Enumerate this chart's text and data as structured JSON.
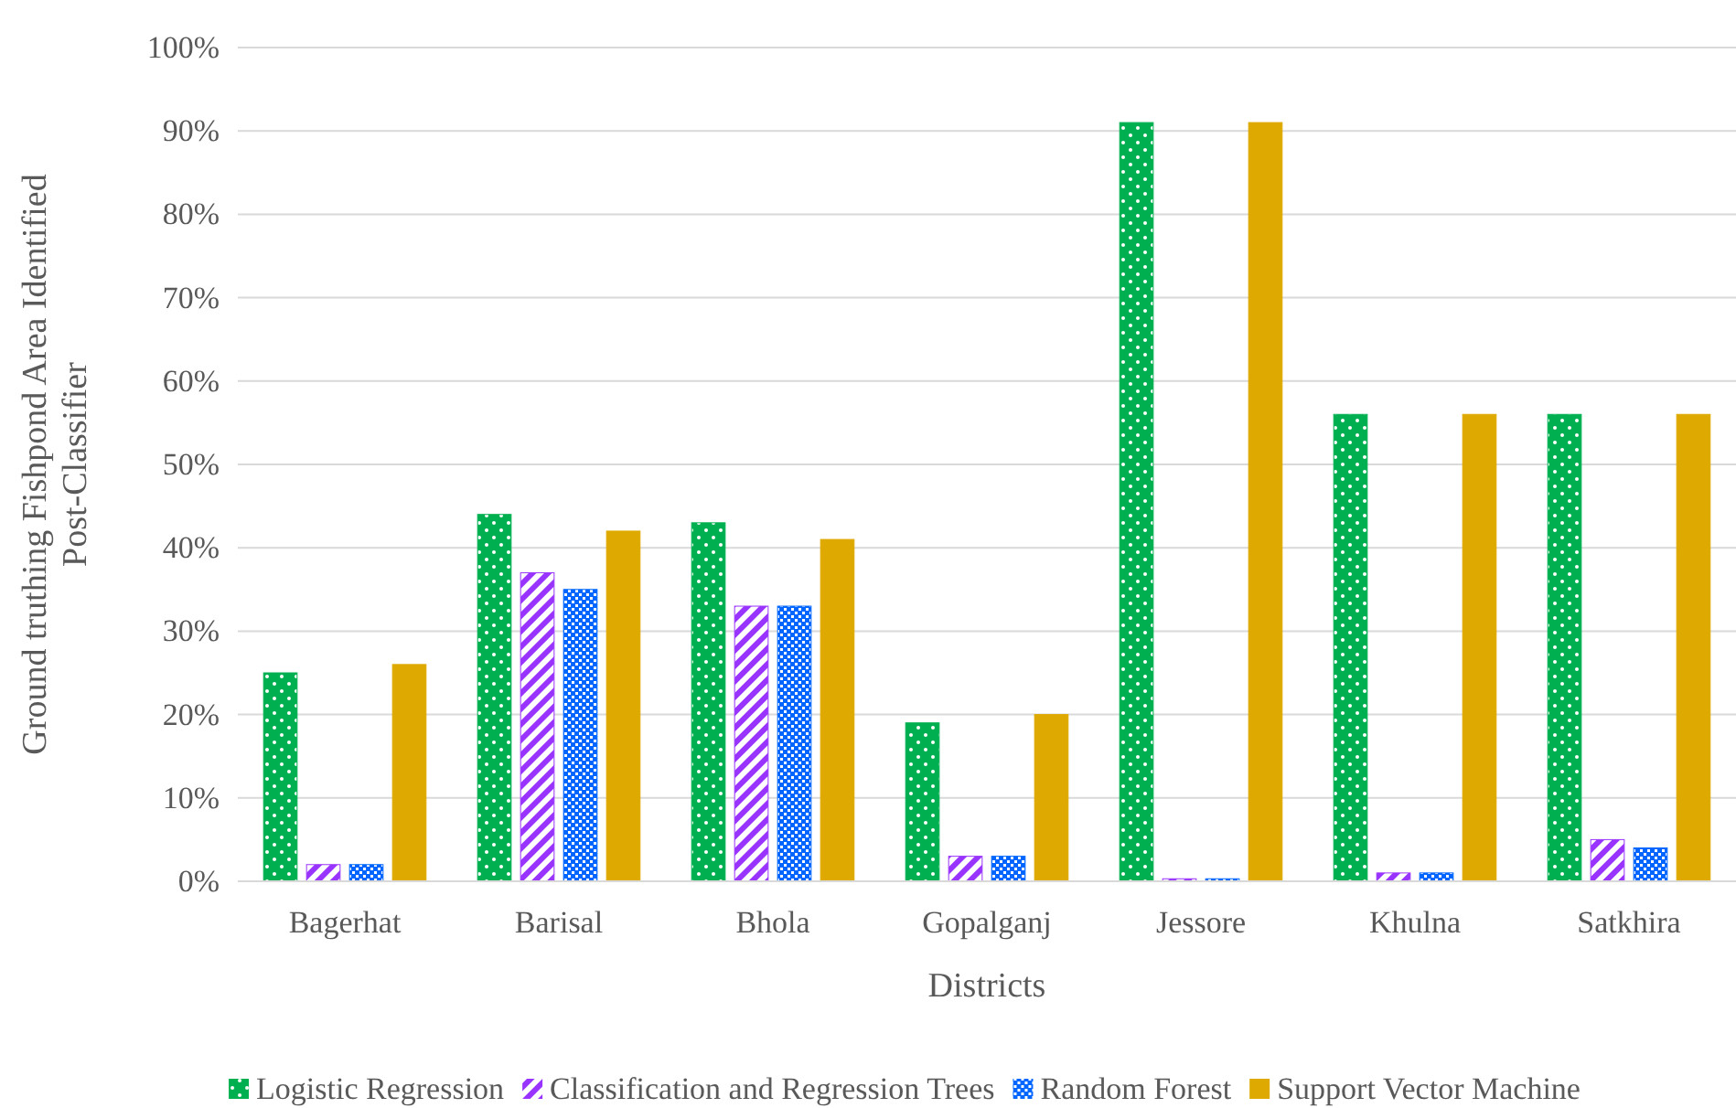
{
  "chart_data": {
    "type": "bar",
    "xlabel": "Districts",
    "ylabel": "Ground truthing  Fishpond Area Identified Post-Classifier",
    "categories": [
      "Bagerhat",
      "Barisal",
      "Bhola",
      "Gopalganj",
      "Jessore",
      "Khulna",
      "Satkhira"
    ],
    "series": [
      {
        "name": "Logistic Regression",
        "color": "#00b050",
        "values": [
          25,
          44,
          43,
          19,
          91,
          56,
          56
        ]
      },
      {
        "name": "Classification and Regression Trees",
        "color": "#9933ff",
        "values": [
          2,
          37,
          33,
          3,
          0.3,
          1,
          5
        ]
      },
      {
        "name": "Random Forest",
        "color": "#0066ff",
        "values": [
          2,
          35,
          33,
          3,
          0.3,
          1,
          4
        ]
      },
      {
        "name": "Support Vector Machine",
        "color": "#dea900",
        "values": [
          26,
          42,
          41,
          20,
          91,
          56,
          56
        ]
      }
    ],
    "ylim": [
      0,
      100
    ],
    "yticks": [
      {
        "value": 0,
        "label": "0%"
      },
      {
        "value": 10,
        "label": "10%"
      },
      {
        "value": 20,
        "label": "20%"
      },
      {
        "value": 30,
        "label": "30%"
      },
      {
        "value": 40,
        "label": "40%"
      },
      {
        "value": 50,
        "label": "50%"
      },
      {
        "value": 60,
        "label": "60%"
      },
      {
        "value": 70,
        "label": "70%"
      },
      {
        "value": 80,
        "label": "80%"
      },
      {
        "value": 90,
        "label": "90%"
      },
      {
        "value": 100,
        "label": "100%"
      }
    ],
    "grid": "y",
    "legend": "bottom"
  }
}
